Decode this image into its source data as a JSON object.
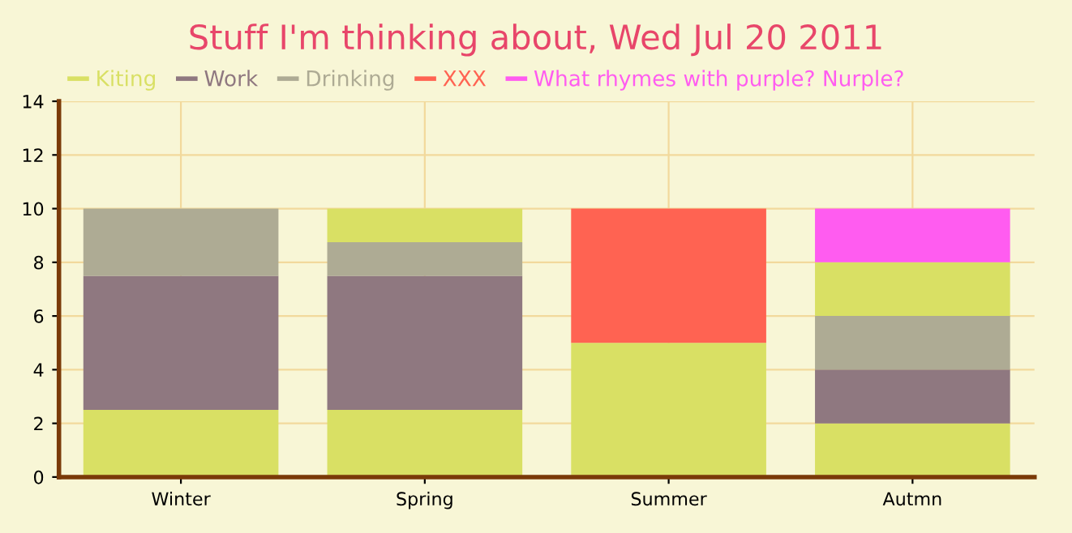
{
  "chart_data": {
    "type": "bar",
    "stacked": true,
    "title": "Stuff I'm thinking about, Wed Jul 20 2011",
    "categories": [
      "Winter",
      "Spring",
      "Summer",
      "Autmn"
    ],
    "series": [
      {
        "name": "Kiting",
        "color": "#d9e064",
        "values": [
          2.5,
          2.5,
          5,
          2
        ]
      },
      {
        "name": "Work",
        "color": "#8f7880",
        "values": [
          5,
          5,
          null,
          2
        ]
      },
      {
        "name": "Drinking",
        "color": "#aeab94",
        "values": [
          2.5,
          1.25,
          null,
          2
        ]
      },
      {
        "color": "#d9e064",
        "values": [
          null,
          1.25,
          null,
          2
        ]
      },
      {
        "name": "XXX",
        "color": "#ff6352",
        "values": [
          null,
          null,
          5,
          null
        ]
      },
      {
        "name": "What rhymes with purple? Nurple?",
        "color": "#ff5cf0",
        "values": [
          null,
          null,
          null,
          2
        ]
      }
    ],
    "ylim": [
      0,
      14
    ],
    "yticks": [
      0,
      2,
      4,
      6,
      8,
      10,
      12,
      14
    ],
    "grid": true,
    "legend": "top left"
  }
}
